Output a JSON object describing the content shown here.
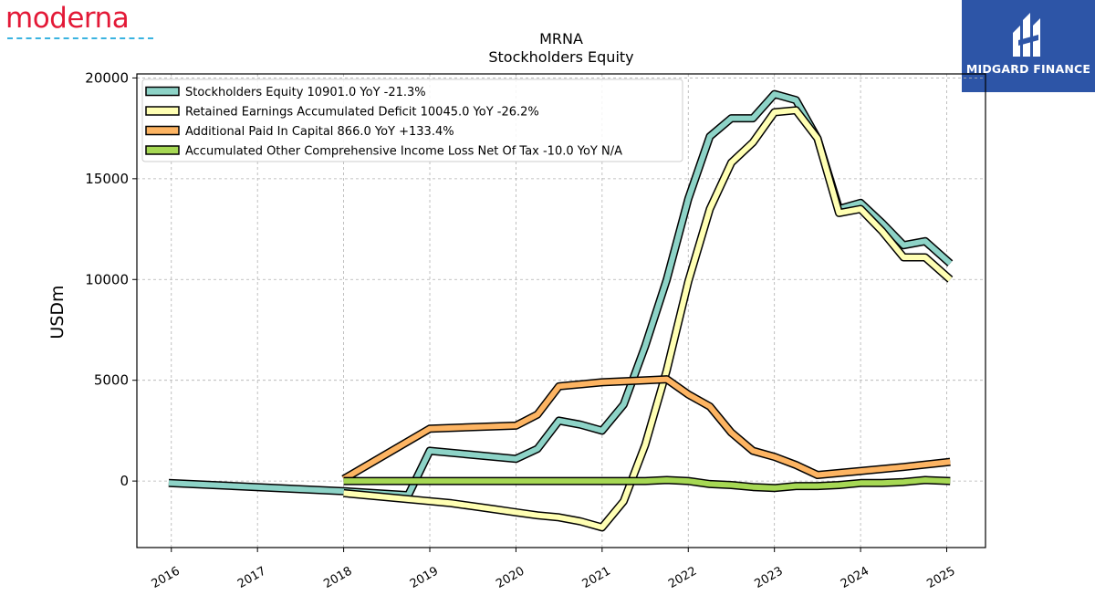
{
  "brand": {
    "logo_text": "moderna"
  },
  "badge": {
    "text": "MIDGARD FINANCE"
  },
  "chart_data": {
    "type": "line",
    "title": "MRNA",
    "subtitle": "Stockholders  Equity",
    "ylabel": "USDm",
    "xlim": [
      2015.6,
      2025.45
    ],
    "ylim": [
      -3300,
      20200
    ],
    "yticks": [
      0,
      5000,
      10000,
      15000,
      20000
    ],
    "xticks": [
      2016,
      2017,
      2018,
      2019,
      2020,
      2021,
      2022,
      2023,
      2024,
      2025
    ],
    "grid": true,
    "legend_position": "top-left",
    "series": [
      {
        "name": "Stockholders Equity",
        "legend": "Stockholders Equity  10901.0 YoY -21.3%",
        "color": "#8dd3c7",
        "x": [
          2015.97,
          2018.0,
          2018.75,
          2019.0,
          2020.0,
          2020.25,
          2020.5,
          2020.75,
          2021.0,
          2021.25,
          2021.5,
          2021.75,
          2022.0,
          2022.25,
          2022.5,
          2022.75,
          2023.0,
          2023.25,
          2023.5,
          2023.75,
          2024.0,
          2024.25,
          2024.5,
          2024.75,
          2025.04
        ],
        "y": [
          -100,
          -500,
          -700,
          1500,
          1100,
          1600,
          3000,
          2800,
          2500,
          3800,
          6700,
          10000,
          14000,
          17100,
          18000,
          18000,
          19200,
          18900,
          17000,
          13500,
          13800,
          12800,
          11700,
          11900,
          10800
        ]
      },
      {
        "name": "Retained Earnings Accumulated Deficit",
        "legend": "Retained Earnings Accumulated Deficit  10045.0 YoY -26.2%",
        "color": "#ffffb3",
        "x": [
          2018.0,
          2019.0,
          2019.25,
          2019.5,
          2019.75,
          2020.0,
          2020.25,
          2020.5,
          2020.75,
          2021.0,
          2021.25,
          2021.5,
          2021.75,
          2022.0,
          2022.25,
          2022.5,
          2022.75,
          2023.0,
          2023.25,
          2023.5,
          2023.75,
          2024.0,
          2024.25,
          2024.5,
          2024.75,
          2025.04
        ],
        "y": [
          -600,
          -1000,
          -1100,
          -1250,
          -1400,
          -1550,
          -1700,
          -1800,
          -2000,
          -2300,
          -1000,
          1800,
          5500,
          9900,
          13500,
          15800,
          16800,
          18300,
          18400,
          17000,
          13300,
          13500,
          12400,
          11100,
          11100,
          10000
        ]
      },
      {
        "name": "Additional Paid In Capital",
        "legend": "Additional Paid In Capital  866.0 YoY +133.4%",
        "color": "#fdb462",
        "x": [
          2018.0,
          2019.0,
          2020.0,
          2020.25,
          2020.5,
          2021.0,
          2021.5,
          2021.75,
          2022.0,
          2022.25,
          2022.5,
          2022.75,
          2023.0,
          2023.25,
          2023.5,
          2024.0,
          2024.5,
          2025.04
        ],
        "y": [
          100,
          2600,
          2750,
          3300,
          4700,
          4900,
          5000,
          5050,
          4300,
          3700,
          2400,
          1500,
          1200,
          800,
          300,
          500,
          700,
          950
        ]
      },
      {
        "name": "Accumulated Other Comprehensive Income Loss Net Of Tax",
        "legend": "Accumulated Other Comprehensive Income Loss Net Of Tax  -10.0 YoY N/A",
        "color": "#a6d854",
        "x": [
          2018.0,
          2019.0,
          2020.0,
          2020.25,
          2020.5,
          2021.0,
          2021.5,
          2021.75,
          2022.0,
          2022.25,
          2022.5,
          2022.75,
          2023.0,
          2023.25,
          2023.5,
          2023.75,
          2024.0,
          2024.25,
          2024.5,
          2024.75,
          2025.04
        ],
        "y": [
          0,
          0,
          0,
          0,
          0,
          0,
          0,
          50,
          0,
          -150,
          -200,
          -300,
          -350,
          -250,
          -250,
          -200,
          -100,
          -100,
          -50,
          50,
          0
        ]
      }
    ]
  }
}
